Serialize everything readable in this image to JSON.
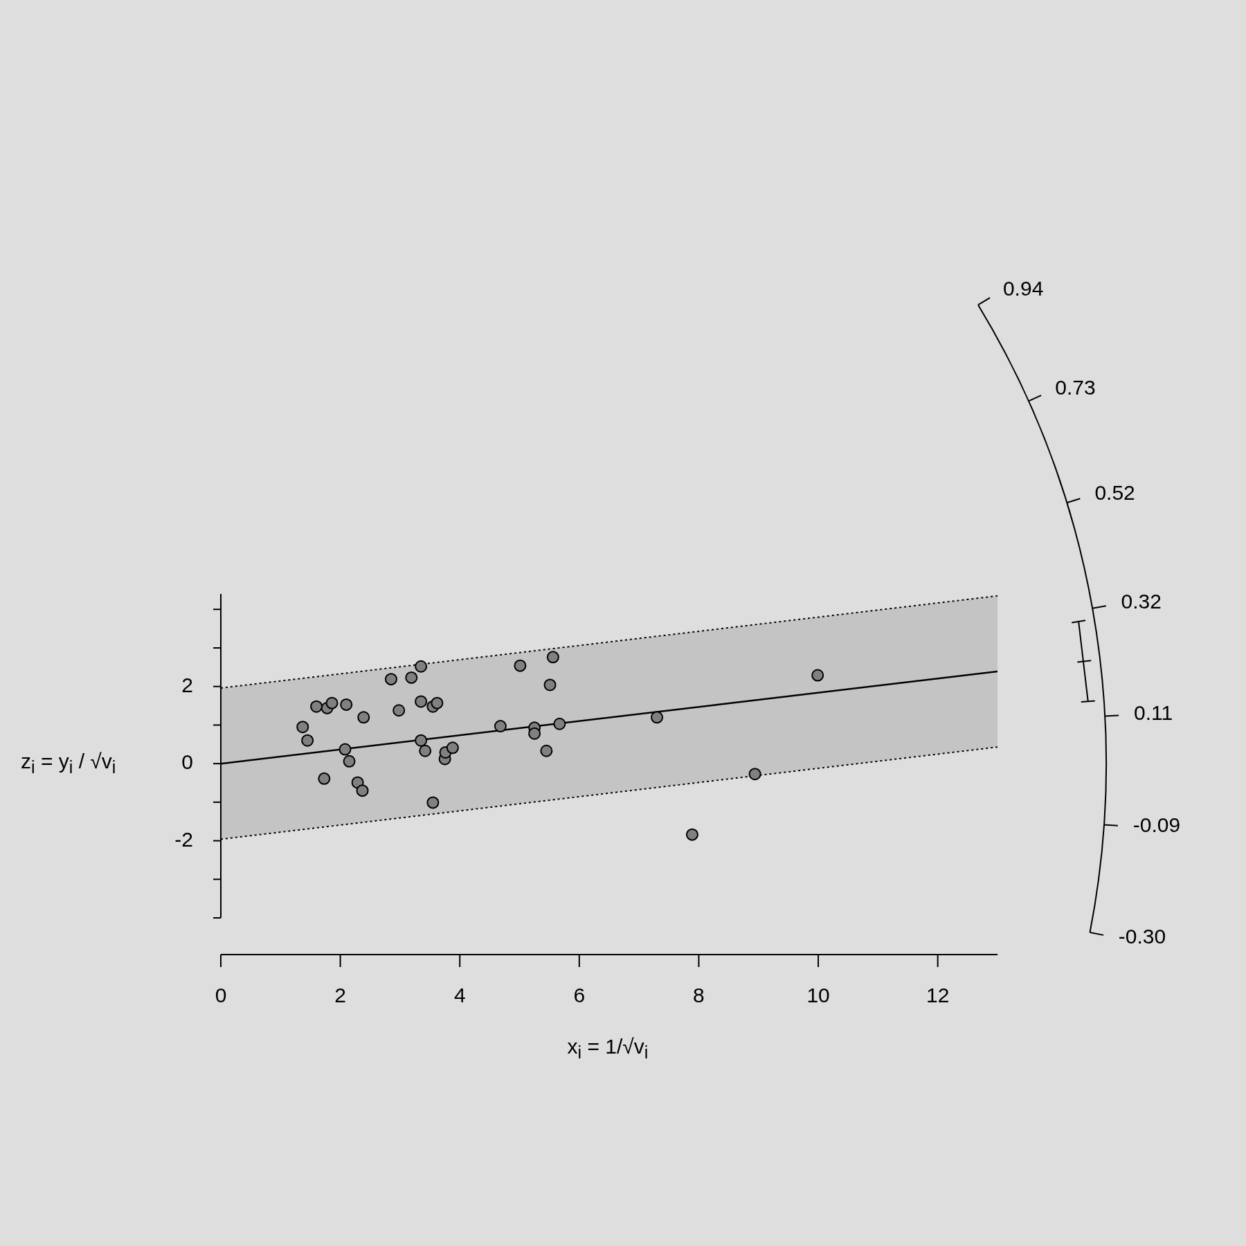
{
  "chart_data": {
    "type": "scatter",
    "xlabel": "x$_{i}$ = 1/√v$_{i}$",
    "ylabel": "z$_{i}$ = y$_{i}$ / √v$_{i}$",
    "marker": "circle",
    "xlim": [
      0,
      13
    ],
    "ylim": [
      -4,
      4.4
    ],
    "xticks": [
      0,
      2,
      4,
      6,
      8,
      10,
      12
    ],
    "yticks": [
      {
        "value": -4,
        "label": null
      },
      {
        "value": -3,
        "label": null
      },
      -2,
      {
        "value": -1,
        "label": null
      },
      0,
      {
        "value": 1,
        "label": null
      },
      2,
      {
        "value": 3,
        "label": null
      },
      {
        "value": 4,
        "label": null
      }
    ],
    "series": [
      {
        "color": "#808080",
        "x": [
          1.37,
          1.45,
          1.6,
          1.73,
          1.78,
          1.86,
          2.08,
          2.1,
          2.15,
          2.29,
          2.37,
          2.39,
          2.85,
          2.98,
          3.19,
          3.35,
          3.35,
          3.35,
          3.42,
          3.55,
          3.55,
          3.62,
          3.75,
          3.76,
          3.88,
          4.68,
          5.01,
          5.25,
          5.25,
          5.45,
          5.51,
          5.56,
          5.67,
          7.3,
          7.89,
          8.94,
          9.99
        ],
        "values": [
          0.95,
          0.6,
          1.48,
          -0.39,
          1.44,
          1.57,
          0.37,
          1.53,
          0.06,
          -0.49,
          -0.7,
          1.2,
          2.19,
          1.38,
          2.23,
          2.52,
          1.61,
          0.6,
          0.33,
          1.48,
          -1.01,
          1.57,
          0.12,
          0.29,
          0.41,
          0.97,
          2.54,
          0.93,
          0.78,
          0.33,
          2.04,
          2.76,
          1.03,
          1.2,
          -1.84,
          -0.27,
          2.29
        ]
      },
      {
        "type": "line",
        "color": "#000000",
        "marker": "none",
        "x": [
          0,
          13
        ],
        "values": [
          0,
          2.39
        ],
        "lower": [
          -1.96,
          0.43
        ],
        "upper": [
          1.96,
          4.35
        ]
      },
      {
        "type": "line",
        "color": "#000000",
        "marker": "none",
        "line_style": "dotted",
        "x": [
          0,
          13
        ],
        "values": [
          1.96,
          4.35
        ]
      },
      {
        "type": "line",
        "color": "#000000",
        "marker": "none",
        "line_style": "dotted",
        "x": [
          0,
          13
        ],
        "values": [
          -1.96,
          0.43
        ]
      }
    ],
    "annotations": [
      "0.94",
      "0.73",
      "0.52",
      "0.32",
      "0.11",
      "-0.09",
      "-0.30"
    ]
  }
}
